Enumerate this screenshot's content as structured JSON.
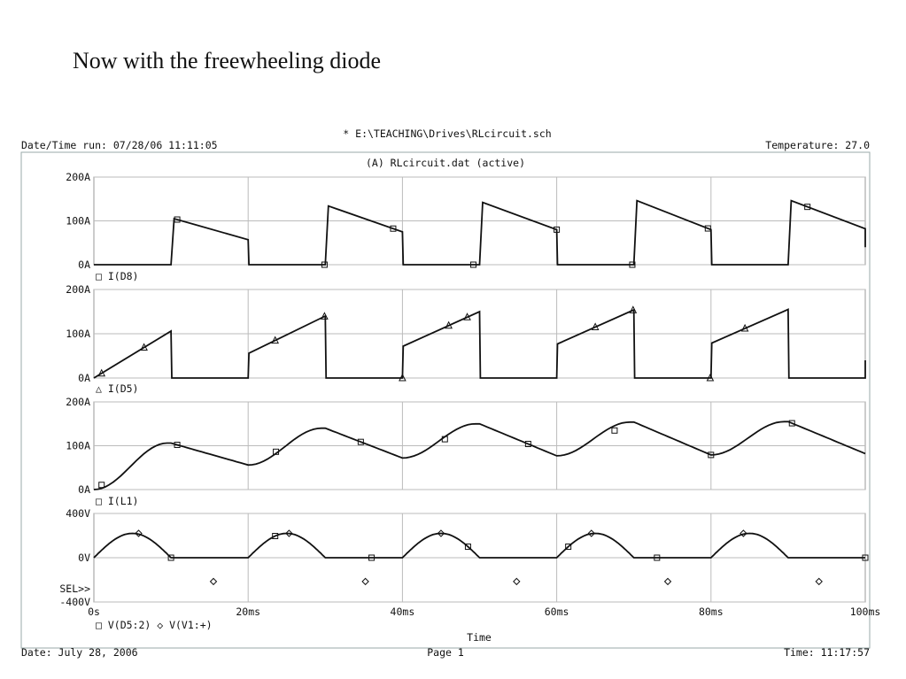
{
  "slide_title": "Now with the freewheeling diode",
  "header": {
    "schematic": "* E:\\TEACHING\\Drives\\RLcircuit.sch",
    "date_time_run": "Date/Time run: 07/28/06 11:11:05",
    "temperature": "Temperature: 27.0",
    "data_file": "(A) RLcircuit.dat (active)"
  },
  "footer": {
    "date": "Date: July 28, 2006",
    "page": "Page 1",
    "time": "Time: 11:17:57"
  },
  "chart_data": [
    {
      "type": "line",
      "legend": "□ I(D8)",
      "series": [
        {
          "name": "I(D8)",
          "x": [
            0,
            10,
            10.4,
            20,
            20.1,
            30,
            30.4,
            40,
            40.1,
            50,
            50.4,
            60,
            60.1,
            70,
            70.4,
            80,
            80.1,
            90,
            90.4,
            100,
            100.1
          ],
          "y": [
            0,
            0,
            105,
            57,
            0,
            0,
            134,
            75,
            0,
            0,
            142,
            80,
            0,
            0,
            146,
            80,
            0,
            0,
            146,
            82,
            40
          ]
        }
      ],
      "marker": "square",
      "markers_x": [
        10.8,
        29.9,
        38.8,
        49.2,
        60,
        69.8,
        79.6,
        92.5
      ],
      "xlim": [
        0,
        100
      ],
      "ylim": [
        0,
        200
      ],
      "yticks": [
        {
          "v": 200,
          "label": "200A"
        },
        {
          "v": 100,
          "label": "100A"
        },
        {
          "v": 0,
          "label": "0A"
        }
      ]
    },
    {
      "type": "line",
      "legend": "△ I(D5)",
      "series": [
        {
          "name": "I(D5)",
          "x": [
            0,
            10,
            10.1,
            20,
            20.1,
            30,
            30.1,
            40,
            40.1,
            50,
            50.1,
            60,
            60.1,
            70,
            70.1,
            80,
            80.1,
            90,
            90.1,
            100,
            100.1
          ],
          "y": [
            0,
            106,
            0,
            0,
            56,
            140,
            0,
            0,
            72,
            150,
            0,
            0,
            77,
            154,
            0,
            0,
            79,
            155,
            0,
            0,
            40
          ]
        }
      ],
      "marker": "triangle",
      "markers_x": [
        1,
        6.5,
        23.5,
        29.9,
        40,
        46,
        48.4,
        65,
        69.9,
        79.9,
        84.4
      ],
      "xlim": [
        0,
        100
      ],
      "ylim": [
        0,
        200
      ],
      "yticks": [
        {
          "v": 200,
          "label": "200A"
        },
        {
          "v": 100,
          "label": "100A"
        },
        {
          "v": 0,
          "label": "0A"
        }
      ]
    },
    {
      "type": "line",
      "legend": "□ I(L1)",
      "series": [
        {
          "name": "I(L1)",
          "x": [
            0,
            10,
            20,
            30,
            40,
            50,
            60,
            70,
            80,
            90,
            100
          ],
          "y": [
            0,
            106,
            56,
            140,
            72,
            150,
            77,
            154,
            79,
            155,
            82
          ]
        }
      ],
      "marker": "square",
      "markers_x": [
        1,
        10.8,
        23.6,
        34.6,
        45.5,
        56.3,
        67.5,
        80,
        90.5
      ],
      "xlim": [
        0,
        100
      ],
      "ylim": [
        0,
        200
      ],
      "yticks": [
        {
          "v": 200,
          "label": "200A"
        },
        {
          "v": 100,
          "label": "100A"
        },
        {
          "v": 0,
          "label": "0A"
        }
      ]
    },
    {
      "type": "line",
      "legend": "□ V(D5:2) ◇ V(V1:+)",
      "series": [
        {
          "name": "V(D5:2)",
          "x": [
            0,
            10,
            20,
            30,
            40,
            50,
            60,
            70,
            80,
            90,
            100
          ],
          "y": [
            0,
            0,
            0,
            0,
            0,
            0,
            0,
            0,
            0,
            0,
            0
          ]
        },
        {
          "name": "V(V1:+)",
          "x": [
            0,
            10,
            20,
            30,
            40,
            50,
            60,
            70,
            80,
            90,
            100
          ],
          "y": [
            0,
            0,
            0,
            0,
            0,
            0,
            0,
            0,
            0,
            0,
            0
          ]
        }
      ],
      "marker": "square",
      "markers_x": [
        10,
        23.5,
        36,
        48.5,
        61.5,
        73,
        100
      ],
      "diamond_markers": [
        {
          "x": 5.8,
          "y": 220
        },
        {
          "x": 15.5,
          "y": -215
        },
        {
          "x": 25.3,
          "y": 220
        },
        {
          "x": 35.2,
          "y": -215
        },
        {
          "x": 45,
          "y": 220
        },
        {
          "x": 54.8,
          "y": -215
        },
        {
          "x": 64.5,
          "y": 220
        },
        {
          "x": 74.4,
          "y": -215
        },
        {
          "x": 84.2,
          "y": 220
        },
        {
          "x": 94,
          "y": -215
        }
      ],
      "xlim": [
        0,
        100
      ],
      "ylim": [
        -400,
        400
      ],
      "yticks": [
        {
          "v": 400,
          "label": "400V"
        },
        {
          "v": 0,
          "label": "0V"
        },
        {
          "v": -400,
          "label": "-400V"
        }
      ],
      "sel_label": "SEL>>",
      "xticks": [
        {
          "v": 0,
          "label": "0s"
        },
        {
          "v": 20,
          "label": "20ms"
        },
        {
          "v": 40,
          "label": "40ms"
        },
        {
          "v": 60,
          "label": "60ms"
        },
        {
          "v": 80,
          "label": "80ms"
        },
        {
          "v": 100,
          "label": "100ms"
        }
      ],
      "xlabel": "Time"
    }
  ]
}
